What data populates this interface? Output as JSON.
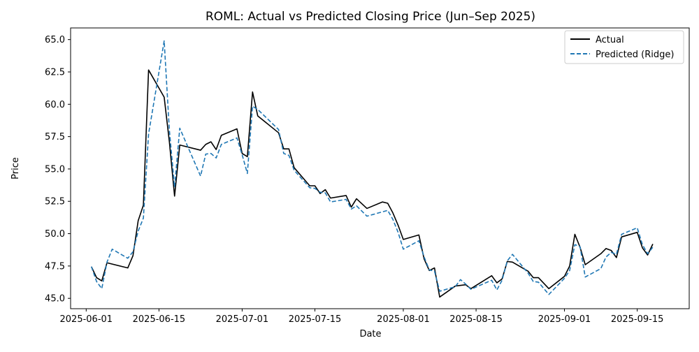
{
  "chart_data": {
    "type": "line",
    "title": "ROML: Actual vs Predicted Closing Price (Jun–Sep 2025)",
    "xlabel": "Date",
    "ylabel": "Price",
    "xlim": [
      "2025-05-29",
      "2025-09-25"
    ],
    "ylim": [
      44.2,
      65.9
    ],
    "x_ticks": [
      "2025-06-01",
      "2025-06-15",
      "2025-07-01",
      "2025-07-15",
      "2025-08-01",
      "2025-08-15",
      "2025-09-01",
      "2025-09-15"
    ],
    "y_ticks": [
      45.0,
      47.5,
      50.0,
      52.5,
      55.0,
      57.5,
      60.0,
      62.5,
      65.0
    ],
    "grid": false,
    "legend": "top-right",
    "series": [
      {
        "name": "Actual",
        "color": "#000000",
        "style": "solid",
        "points": [
          [
            "2025-06-02",
            47.45
          ],
          [
            "2025-06-03",
            46.6
          ],
          [
            "2025-06-04",
            46.35
          ],
          [
            "2025-06-05",
            47.75
          ],
          [
            "2025-06-09",
            47.35
          ],
          [
            "2025-06-10",
            48.3
          ],
          [
            "2025-06-11",
            51.0
          ],
          [
            "2025-06-12",
            52.2
          ],
          [
            "2025-06-13",
            62.65
          ],
          [
            "2025-06-16",
            60.55
          ],
          [
            "2025-06-17",
            57.1
          ],
          [
            "2025-06-18",
            52.9
          ],
          [
            "2025-06-19",
            56.85
          ],
          [
            "2025-06-23",
            56.45
          ],
          [
            "2025-06-24",
            56.9
          ],
          [
            "2025-06-25",
            57.1
          ],
          [
            "2025-06-26",
            56.5
          ],
          [
            "2025-06-27",
            57.6
          ],
          [
            "2025-06-30",
            58.1
          ],
          [
            "2025-07-01",
            56.2
          ],
          [
            "2025-07-02",
            55.95
          ],
          [
            "2025-07-03",
            60.95
          ],
          [
            "2025-07-04",
            59.1
          ],
          [
            "2025-07-08",
            57.8
          ],
          [
            "2025-07-09",
            56.55
          ],
          [
            "2025-07-10",
            56.55
          ],
          [
            "2025-07-11",
            55.1
          ],
          [
            "2025-07-14",
            53.7
          ],
          [
            "2025-07-15",
            53.7
          ],
          [
            "2025-07-16",
            53.1
          ],
          [
            "2025-07-17",
            53.4
          ],
          [
            "2025-07-18",
            52.75
          ],
          [
            "2025-07-21",
            52.95
          ],
          [
            "2025-07-22",
            52.05
          ],
          [
            "2025-07-23",
            52.7
          ],
          [
            "2025-07-25",
            51.95
          ],
          [
            "2025-07-28",
            52.45
          ],
          [
            "2025-07-29",
            52.35
          ],
          [
            "2025-07-30",
            51.6
          ],
          [
            "2025-07-31",
            50.65
          ],
          [
            "2025-08-01",
            49.55
          ],
          [
            "2025-08-04",
            49.9
          ],
          [
            "2025-08-05",
            48.05
          ],
          [
            "2025-08-06",
            47.15
          ],
          [
            "2025-08-07",
            47.35
          ],
          [
            "2025-08-08",
            45.1
          ],
          [
            "2025-08-11",
            45.95
          ],
          [
            "2025-08-13",
            46.05
          ],
          [
            "2025-08-14",
            45.75
          ],
          [
            "2025-08-18",
            46.75
          ],
          [
            "2025-08-19",
            46.2
          ],
          [
            "2025-08-20",
            46.5
          ],
          [
            "2025-08-21",
            47.85
          ],
          [
            "2025-08-22",
            47.8
          ],
          [
            "2025-08-25",
            47.1
          ],
          [
            "2025-08-26",
            46.6
          ],
          [
            "2025-08-27",
            46.6
          ],
          [
            "2025-08-29",
            45.75
          ],
          [
            "2025-09-01",
            46.7
          ],
          [
            "2025-09-02",
            47.5
          ],
          [
            "2025-09-03",
            49.95
          ],
          [
            "2025-09-04",
            48.95
          ],
          [
            "2025-09-05",
            47.6
          ],
          [
            "2025-09-08",
            48.45
          ],
          [
            "2025-09-09",
            48.85
          ],
          [
            "2025-09-10",
            48.7
          ],
          [
            "2025-09-11",
            48.15
          ],
          [
            "2025-09-12",
            49.75
          ],
          [
            "2025-09-15",
            50.1
          ],
          [
            "2025-09-16",
            48.9
          ],
          [
            "2025-09-17",
            48.35
          ],
          [
            "2025-09-18",
            49.2
          ]
        ]
      },
      {
        "name": "Predicted (Ridge)",
        "color": "#1f77b4",
        "style": "dashed",
        "points": [
          [
            "2025-06-02",
            47.45
          ],
          [
            "2025-06-03",
            46.3
          ],
          [
            "2025-06-04",
            45.75
          ],
          [
            "2025-06-05",
            47.8
          ],
          [
            "2025-06-06",
            48.8
          ],
          [
            "2025-06-09",
            48.1
          ],
          [
            "2025-06-10",
            48.6
          ],
          [
            "2025-06-11",
            50.2
          ],
          [
            "2025-06-12",
            51.2
          ],
          [
            "2025-06-13",
            57.7
          ],
          [
            "2025-06-16",
            64.9
          ],
          [
            "2025-06-17",
            58.0
          ],
          [
            "2025-06-18",
            53.6
          ],
          [
            "2025-06-19",
            58.15
          ],
          [
            "2025-06-23",
            54.45
          ],
          [
            "2025-06-24",
            56.15
          ],
          [
            "2025-06-25",
            56.2
          ],
          [
            "2025-06-26",
            55.85
          ],
          [
            "2025-06-27",
            56.9
          ],
          [
            "2025-06-30",
            57.4
          ],
          [
            "2025-07-01",
            56.1
          ],
          [
            "2025-07-02",
            54.65
          ],
          [
            "2025-07-03",
            59.85
          ],
          [
            "2025-07-04",
            59.6
          ],
          [
            "2025-07-08",
            58.05
          ],
          [
            "2025-07-09",
            56.2
          ],
          [
            "2025-07-10",
            56.05
          ],
          [
            "2025-07-11",
            54.9
          ],
          [
            "2025-07-14",
            53.55
          ],
          [
            "2025-07-15",
            53.5
          ],
          [
            "2025-07-16",
            53.2
          ],
          [
            "2025-07-17",
            53.15
          ],
          [
            "2025-07-18",
            52.45
          ],
          [
            "2025-07-21",
            52.65
          ],
          [
            "2025-07-22",
            51.9
          ],
          [
            "2025-07-23",
            52.15
          ],
          [
            "2025-07-25",
            51.35
          ],
          [
            "2025-07-29",
            51.8
          ],
          [
            "2025-07-30",
            51.1
          ],
          [
            "2025-07-31",
            50.1
          ],
          [
            "2025-08-01",
            48.8
          ],
          [
            "2025-08-04",
            49.45
          ],
          [
            "2025-08-05",
            48.2
          ],
          [
            "2025-08-06",
            47.2
          ],
          [
            "2025-08-07",
            47.1
          ],
          [
            "2025-08-08",
            45.55
          ],
          [
            "2025-08-11",
            45.9
          ],
          [
            "2025-08-12",
            46.45
          ],
          [
            "2025-08-13",
            46.1
          ],
          [
            "2025-08-14",
            45.7
          ],
          [
            "2025-08-18",
            46.4
          ],
          [
            "2025-08-19",
            45.65
          ],
          [
            "2025-08-20",
            46.4
          ],
          [
            "2025-08-21",
            47.9
          ],
          [
            "2025-08-22",
            48.4
          ],
          [
            "2025-08-25",
            46.95
          ],
          [
            "2025-08-26",
            46.3
          ],
          [
            "2025-08-27",
            46.25
          ],
          [
            "2025-08-29",
            45.3
          ],
          [
            "2025-09-01",
            46.55
          ],
          [
            "2025-09-02",
            47.15
          ],
          [
            "2025-09-03",
            49.15
          ],
          [
            "2025-09-04",
            49.0
          ],
          [
            "2025-09-05",
            46.65
          ],
          [
            "2025-09-08",
            47.3
          ],
          [
            "2025-09-09",
            48.2
          ],
          [
            "2025-09-10",
            48.55
          ],
          [
            "2025-09-11",
            48.4
          ],
          [
            "2025-09-12",
            49.95
          ],
          [
            "2025-09-15",
            50.45
          ],
          [
            "2025-09-16",
            49.15
          ],
          [
            "2025-09-17",
            48.45
          ],
          [
            "2025-09-18",
            48.95
          ]
        ]
      }
    ]
  }
}
